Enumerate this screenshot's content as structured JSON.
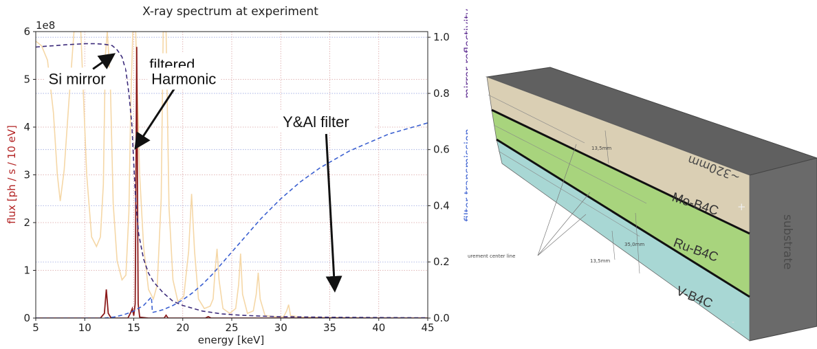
{
  "chart_data": {
    "type": "line",
    "title": "X-ray spectrum at experiment",
    "xlabel": "energy [keV]",
    "ylabel_left": "flux [ph / s / 10 eV]",
    "ylabel_right_top": "mirror reflectivity",
    "ylabel_right_bottom": "filter transmission",
    "y_exponent": "1e8",
    "xlim": [
      5,
      45
    ],
    "ylim_left": [
      0,
      6
    ],
    "ylim_right": [
      0,
      1.02
    ],
    "x_ticks": [
      5,
      10,
      15,
      20,
      25,
      30,
      35,
      40,
      45
    ],
    "y_left_ticks": [
      0,
      1,
      2,
      3,
      4,
      5,
      6
    ],
    "y_right_ticks": [
      "0.0",
      "0.2",
      "0.4",
      "0.6",
      "0.8",
      "1.0"
    ],
    "grid": true,
    "series": [
      {
        "color": "#f5d7a6",
        "points": [
          [
            5,
            5.8
          ],
          [
            5.6,
            5.7
          ],
          [
            6.2,
            5.4
          ],
          [
            6.8,
            4.3
          ],
          [
            7.2,
            3.0
          ],
          [
            7.5,
            2.45
          ],
          [
            7.9,
            3.1
          ],
          [
            8.4,
            4.6
          ],
          [
            8.9,
            6.0
          ],
          [
            9.6,
            6.0
          ],
          [
            10.2,
            3.0
          ],
          [
            10.7,
            1.7
          ],
          [
            11.2,
            1.5
          ],
          [
            11.6,
            1.7
          ],
          [
            11.9,
            2.8
          ],
          [
            12.1,
            5.5
          ],
          [
            12.3,
            6.0
          ],
          [
            12.6,
            5.0
          ],
          [
            12.9,
            2.4
          ],
          [
            13.3,
            1.2
          ],
          [
            13.8,
            0.8
          ],
          [
            14.2,
            0.9
          ],
          [
            14.5,
            2.2
          ],
          [
            14.7,
            4.5
          ],
          [
            14.9,
            6.0
          ],
          [
            15.2,
            6.0
          ],
          [
            15.6,
            3.0
          ],
          [
            16.0,
            1.5
          ],
          [
            16.5,
            0.6
          ],
          [
            17.0,
            0.4
          ],
          [
            17.4,
            0.7
          ],
          [
            17.8,
            2.5
          ],
          [
            18.0,
            6.0
          ],
          [
            18.3,
            6.0
          ],
          [
            18.6,
            2.3
          ],
          [
            19.0,
            0.8
          ],
          [
            19.5,
            0.35
          ],
          [
            20.1,
            0.45
          ],
          [
            20.6,
            1.4
          ],
          [
            20.9,
            2.6
          ],
          [
            21.2,
            1.4
          ],
          [
            21.6,
            0.4
          ],
          [
            22.2,
            0.2
          ],
          [
            22.8,
            0.25
          ],
          [
            23.1,
            0.4
          ],
          [
            23.3,
            1.0
          ],
          [
            23.5,
            1.45
          ],
          [
            23.7,
            0.8
          ],
          [
            24.1,
            0.2
          ],
          [
            24.8,
            0.1
          ],
          [
            25.4,
            0.2
          ],
          [
            25.7,
            0.7
          ],
          [
            25.9,
            1.35
          ],
          [
            26.1,
            0.5
          ],
          [
            26.6,
            0.1
          ],
          [
            27.2,
            0.15
          ],
          [
            27.5,
            0.5
          ],
          [
            27.7,
            0.95
          ],
          [
            27.9,
            0.4
          ],
          [
            28.4,
            0.05
          ],
          [
            29.4,
            0.03
          ],
          [
            30.3,
            0.03
          ],
          [
            30.6,
            0.15
          ],
          [
            30.8,
            0.28
          ],
          [
            31.0,
            0.05
          ],
          [
            32,
            0.02
          ],
          [
            36,
            0.01
          ],
          [
            40,
            0.0
          ],
          [
            45,
            0.0
          ]
        ]
      },
      {
        "color": "#8b1a1a",
        "points": [
          [
            5,
            0
          ],
          [
            11.6,
            0
          ],
          [
            12.0,
            0.1
          ],
          [
            12.2,
            0.6
          ],
          [
            12.4,
            0.1
          ],
          [
            12.7,
            0
          ],
          [
            14.4,
            0
          ],
          [
            14.7,
            0.12
          ],
          [
            14.85,
            0.2
          ],
          [
            15.0,
            0.05
          ],
          [
            15.15,
            0.3
          ],
          [
            15.3,
            5.68
          ],
          [
            15.45,
            0.3
          ],
          [
            15.6,
            0.02
          ],
          [
            16.5,
            0
          ],
          [
            18.1,
            0
          ],
          [
            18.3,
            0.06
          ],
          [
            18.5,
            0
          ],
          [
            22.3,
            0
          ],
          [
            22.6,
            0.03
          ],
          [
            22.9,
            0
          ],
          [
            45,
            0
          ]
        ]
      },
      {
        "axis": "right",
        "color": "#3b2a7a",
        "dash": "6,4",
        "points": [
          [
            5,
            0.965
          ],
          [
            6,
            0.968
          ],
          [
            7,
            0.97
          ],
          [
            8,
            0.973
          ],
          [
            9,
            0.975
          ],
          [
            10,
            0.977
          ],
          [
            11,
            0.977
          ],
          [
            12,
            0.975
          ],
          [
            12.8,
            0.97
          ],
          [
            13.3,
            0.955
          ],
          [
            13.8,
            0.93
          ],
          [
            14.2,
            0.88
          ],
          [
            14.5,
            0.8
          ],
          [
            14.8,
            0.69
          ],
          [
            15.0,
            0.55
          ],
          [
            15.2,
            0.42
          ],
          [
            15.5,
            0.3
          ],
          [
            16.0,
            0.21
          ],
          [
            16.5,
            0.16
          ],
          [
            17.0,
            0.13
          ],
          [
            18,
            0.09
          ],
          [
            19,
            0.06
          ],
          [
            20,
            0.045
          ],
          [
            22,
            0.025
          ],
          [
            24,
            0.015
          ],
          [
            26,
            0.01
          ],
          [
            28,
            0.007
          ],
          [
            30,
            0.005
          ],
          [
            35,
            0.003
          ],
          [
            40,
            0.002
          ],
          [
            45,
            0.001
          ]
        ]
      },
      {
        "axis": "right",
        "color": "#3a5fd0",
        "dash": "6,4",
        "points": [
          [
            5,
            0
          ],
          [
            12,
            0.0
          ],
          [
            13,
            0.004
          ],
          [
            14,
            0.012
          ],
          [
            15,
            0.025
          ],
          [
            16,
            0.045
          ],
          [
            16.8,
            0.075
          ],
          [
            16.9,
            0.02
          ],
          [
            17.5,
            0.025
          ],
          [
            18,
            0.03
          ],
          [
            19,
            0.045
          ],
          [
            20,
            0.065
          ],
          [
            21,
            0.09
          ],
          [
            22,
            0.12
          ],
          [
            23,
            0.155
          ],
          [
            24,
            0.195
          ],
          [
            25,
            0.235
          ],
          [
            26,
            0.275
          ],
          [
            27,
            0.315
          ],
          [
            28,
            0.355
          ],
          [
            29,
            0.39
          ],
          [
            30,
            0.425
          ],
          [
            31,
            0.455
          ],
          [
            32,
            0.485
          ],
          [
            33,
            0.51
          ],
          [
            34,
            0.535
          ],
          [
            35,
            0.555
          ],
          [
            36,
            0.575
          ],
          [
            37,
            0.595
          ],
          [
            38,
            0.61
          ],
          [
            39,
            0.625
          ],
          [
            40,
            0.64
          ],
          [
            41,
            0.655
          ],
          [
            42,
            0.665
          ],
          [
            43,
            0.675
          ],
          [
            44,
            0.685
          ],
          [
            45,
            0.695
          ]
        ]
      }
    ],
    "annotations": [
      {
        "text": "Si mirror",
        "x": 6.3,
        "y": 4.9,
        "arrow_to": [
          12.8,
          5.5
        ]
      },
      {
        "text": "filtered",
        "x": 16.6,
        "y": 5.2,
        "arrow_to": [
          15.3,
          3.6
        ]
      },
      {
        "text": "Harmonic",
        "x": 16.8,
        "y": 4.9
      },
      {
        "text": "Y&Al filter",
        "x": 30.2,
        "y": 4.0,
        "arrow_to": [
          35.5,
          0.62
        ]
      }
    ]
  },
  "diagram": {
    "layers": [
      "Mo-B4C",
      "Ru-B4C",
      "V-B4C"
    ],
    "dimensions": [
      "13,5mm",
      "35,0mm",
      "13,5mm"
    ],
    "leader_label": "urement center line",
    "top_face_text": "~320mm",
    "side_face_text": "substrate",
    "plus_mark": "+",
    "minus_mark": "-"
  }
}
